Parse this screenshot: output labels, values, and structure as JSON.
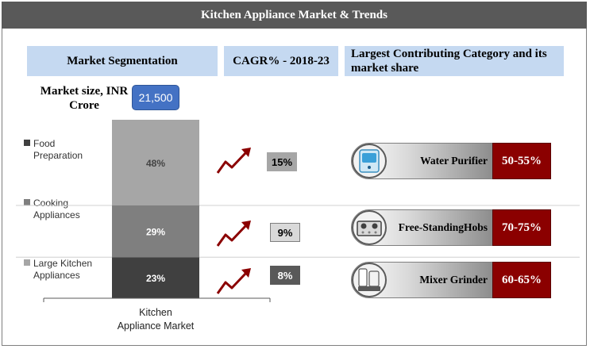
{
  "title": "Kitchen Appliance Market & Trends",
  "headers": {
    "segmentation": "Market Segmentation",
    "cagr": "CAGR% - 2018-23",
    "category": "Largest Contributing Category and its market share"
  },
  "market_size": {
    "label": "Market size, INR Crore",
    "value": "21,500"
  },
  "colors": {
    "food": "#a6a6a6",
    "cooking": "#7f7f7f",
    "large": "#404040",
    "accent": "#8b0000",
    "header_bg": "#c5d9f1"
  },
  "chart_data": {
    "type": "bar",
    "stacked": true,
    "normalized": true,
    "categories": [
      "Kitchen Appliance Market"
    ],
    "category_label_lines": [
      "Kitchen",
      "Appliance Market"
    ],
    "series": [
      {
        "name": "Large Kitchen Appliances",
        "values": [
          23
        ],
        "label": "23%"
      },
      {
        "name": "Cooking Appliances",
        "values": [
          29
        ],
        "label": "29%"
      },
      {
        "name": "Food Preparation",
        "values": [
          48
        ],
        "label": "48%"
      }
    ],
    "legend": {
      "placement": "left",
      "items": [
        {
          "line1": "Food",
          "line2": "Preparation"
        },
        {
          "line1": "Cooking",
          "line2": "Appliances"
        },
        {
          "line1": "Large Kitchen",
          "line2": "Appliances"
        }
      ]
    },
    "cagr": [
      {
        "segment": "Food Preparation",
        "label": "15%"
      },
      {
        "segment": "Cooking Appliances",
        "label": "9%"
      },
      {
        "segment": "Large Kitchen Appliances",
        "label": "8%"
      }
    ]
  },
  "categories": [
    {
      "name": "Water Purifier",
      "share": "50-55%",
      "icon": "water-purifier-icon"
    },
    {
      "name_line1": "Free-Standing",
      "name_line2": "Hobs",
      "share": "70-75%",
      "icon": "gas-hob-icon"
    },
    {
      "name": "Mixer Grinder",
      "share": "60-65%",
      "icon": "mixer-grinder-icon"
    }
  ]
}
